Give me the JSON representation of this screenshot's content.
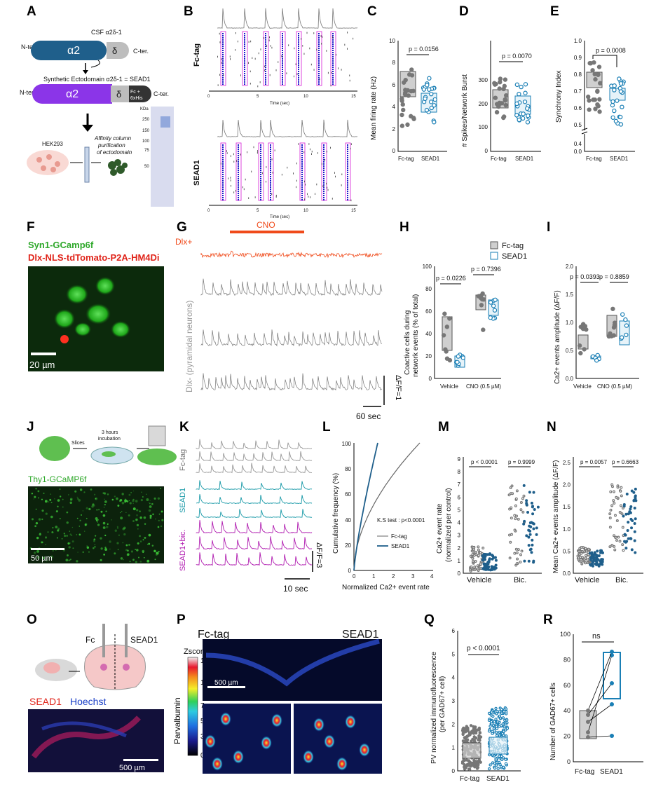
{
  "panels": [
    "A",
    "B",
    "C",
    "D",
    "E",
    "F",
    "G",
    "H",
    "I",
    "J",
    "K",
    "L",
    "M",
    "N",
    "O",
    "P",
    "Q",
    "R"
  ],
  "A": {
    "csf_label": "CSF α2δ-1",
    "nter": "N-ter.",
    "cter": "C-ter.",
    "alpha2": "α2",
    "delta": "δ",
    "sead_title": "Synthetic Ectodomain α2δ-1 = SEAD1",
    "fc_tag": "Fc +",
    "his_tag": "6xHis",
    "hek": "HEK293",
    "purif_1": "Affinity column",
    "purif_2": "purification",
    "purif_3": "of ectodomain",
    "kda": "KDa",
    "ladder": [
      "250",
      "150",
      "100",
      "75",
      "50"
    ]
  },
  "B": {
    "row1": "Fc-tag",
    "row2": "SEAD1",
    "xlabel": "Time (sec)",
    "ticks": [
      "0",
      "5",
      "10",
      "15"
    ]
  },
  "C": {
    "ylabel": "Mean firing rate (Hz)",
    "pval": "p = 0.0156",
    "yticks": [
      "0",
      "2",
      "4",
      "6",
      "8",
      "10"
    ],
    "groups": [
      "Fc-tag",
      "SEAD1"
    ]
  },
  "D": {
    "ylabel": "# Spikes/Network Burst",
    "pval": "p = 0.0070",
    "yticks": [
      "0",
      "100",
      "200",
      "300"
    ],
    "groups": [
      "Fc-tag",
      "SEAD1"
    ]
  },
  "E": {
    "ylabel": "Synchrony Index",
    "pval": "p = 0.0008",
    "yticks": [
      "0.0",
      "0.4",
      "0.5",
      "0.6",
      "0.7",
      "0.8",
      "0.9",
      "1.0"
    ],
    "groups": [
      "Fc-tag",
      "SEAD1"
    ]
  },
  "F": {
    "line1": "Syn1-GCamp6f",
    "line2": "Dlx-NLS-tdTomato-P2A-HM4Di",
    "scale": "20 µm"
  },
  "G": {
    "cno": "CNO",
    "dlx_plus": "Dlx+",
    "dlx_minus": "Dlx- (pyramidal neurons)",
    "dff": "ΔF/F=1",
    "time": "60 sec"
  },
  "H": {
    "ylabel_1": "Coactive cells during",
    "ylabel_2": "network events (% of total)",
    "p1": "p = 0.0226",
    "p2": "p = 0.7396",
    "yticks": [
      "0",
      "20",
      "40",
      "60",
      "80",
      "100"
    ],
    "groups": [
      "Vehicle",
      "CNO (0.5 µM)"
    ]
  },
  "I": {
    "ylabel": "Ca2+ events amplitude (ΔF/F)",
    "p1": "p = 0.0393",
    "p2": "p = 0.8859",
    "yticks": [
      "0.0",
      "0.5",
      "1.0",
      "1.5",
      "2.0"
    ],
    "groups": [
      "Vehicle",
      "CNO (0.5 µM)"
    ]
  },
  "legend": {
    "fc": "Fc-tag",
    "sead": "SEAD1"
  },
  "J": {
    "slices": "Slices",
    "incub_1": "3 hours",
    "incub_2": "incubation",
    "label": "Thy1-GCaMP6f",
    "scale": "50 µm"
  },
  "K": {
    "fc": "Fc-tag",
    "sead": "SEAD1",
    "bic": "SEAD1+bic.",
    "dff": "ΔF/F=3",
    "time": "10 sec"
  },
  "L": {
    "ylabel": "Cumulative frequency (%)",
    "xlabel": "Normalized Ca2+ event rate",
    "ks": "K.S test : p<0.0001",
    "fc": "Fc-tag",
    "sead": "SEAD1",
    "yticks": [
      "0",
      "20",
      "40",
      "60",
      "80",
      "100"
    ],
    "xticks": [
      "0",
      "1",
      "2",
      "3",
      "4"
    ]
  },
  "M": {
    "ylabel_1": "Ca2+ event rate",
    "ylabel_2": "(normalized per control)",
    "p1": "p < 0.0001",
    "p2": "p = 0.9999",
    "yticks": [
      "0",
      "1",
      "2",
      "3",
      "4",
      "5",
      "6",
      "7",
      "8",
      "9"
    ],
    "groups": [
      "Vehicle",
      "Bic."
    ]
  },
  "N": {
    "ylabel": "Mean Ca2+ events amplitude (ΔF/F)",
    "p1": "p = 0.0057",
    "p2": "p = 0.6663",
    "yticks": [
      "0.0",
      "0.5",
      "1.0",
      "1.5",
      "2.0",
      "2.5"
    ],
    "groups": [
      "Vehicle",
      "Bic."
    ]
  },
  "O": {
    "fc": "Fc",
    "sead": "SEAD1",
    "stain1": "SEAD1",
    "stain2": "Hoechst",
    "scale": "500 µm"
  },
  "P": {
    "fc": "Fc-tag",
    "sead": "SEAD1",
    "zscore": "Zscore",
    "pv": "Parvalbumin",
    "cbar": [
      "13",
      "10",
      "7",
      "5",
      "3",
      "0"
    ],
    "scale": "500 µm"
  },
  "Q": {
    "ylabel_1": "PV normalized immunofluorescence",
    "ylabel_2": "(per GAD67+ cell)",
    "pval": "p < 0.0001",
    "yticks": [
      "0",
      "1",
      "2",
      "3",
      "4",
      "5",
      "6"
    ],
    "groups": [
      "Fc-tag",
      "SEAD1"
    ]
  },
  "R": {
    "ylabel": "Number of GAD67+ cells",
    "pval": "ns",
    "yticks": [
      "0",
      "20",
      "40",
      "60",
      "80",
      "100"
    ],
    "groups": [
      "Fc-tag",
      "SEAD1"
    ]
  },
  "colors": {
    "gray": "#8c8c8c",
    "blue": "#1a7fb5",
    "teal": "#1a9aa8",
    "magenta": "#b01cb0",
    "purple": "#8b35e8",
    "navy": "#1f5f8b",
    "orange": "#f04a1a"
  }
}
